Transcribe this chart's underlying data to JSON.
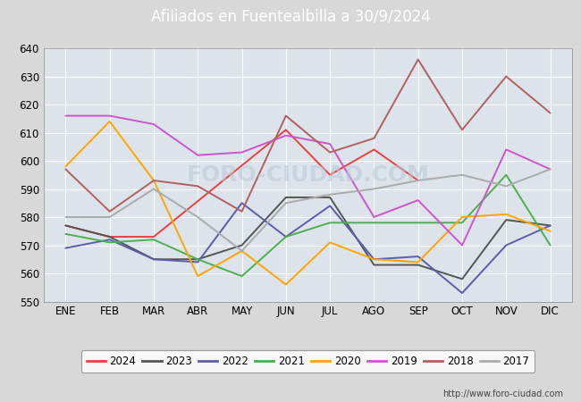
{
  "title": "Afiliados en Fuentealbilla a 30/9/2024",
  "title_bg": "#5b8dd9",
  "xlabel": "",
  "ylabel": "",
  "ylim": [
    550,
    640
  ],
  "yticks": [
    550,
    560,
    570,
    580,
    590,
    600,
    610,
    620,
    630,
    640
  ],
  "months": [
    "ENE",
    "FEB",
    "MAR",
    "ABR",
    "MAY",
    "JUN",
    "JUL",
    "AGO",
    "SEP",
    "OCT",
    "NOV",
    "DIC"
  ],
  "series": {
    "2024": {
      "color": "#e84040",
      "data": [
        577,
        573,
        573,
        null,
        null,
        611,
        595,
        604,
        593,
        null,
        null,
        null
      ]
    },
    "2023": {
      "color": "#555555",
      "data": [
        577,
        573,
        565,
        565,
        570,
        587,
        587,
        563,
        563,
        558,
        579,
        577
      ]
    },
    "2022": {
      "color": "#5b5ea6",
      "data": [
        569,
        572,
        565,
        564,
        585,
        573,
        584,
        565,
        566,
        553,
        570,
        577
      ]
    },
    "2021": {
      "color": "#4caf50",
      "data": [
        574,
        571,
        572,
        565,
        559,
        573,
        578,
        578,
        578,
        578,
        595,
        570
      ]
    },
    "2020": {
      "color": "#ffa500",
      "data": [
        598,
        614,
        593,
        559,
        568,
        556,
        571,
        565,
        564,
        580,
        581,
        575
      ]
    },
    "2019": {
      "color": "#cc55cc",
      "data": [
        616,
        616,
        613,
        602,
        603,
        609,
        606,
        580,
        586,
        570,
        604,
        597
      ]
    },
    "2018": {
      "color": "#b06060",
      "data": [
        597,
        582,
        593,
        591,
        582,
        616,
        603,
        608,
        636,
        611,
        630,
        617
      ]
    },
    "2017": {
      "color": "#aaaaaa",
      "data": [
        580,
        580,
        590,
        580,
        568,
        585,
        588,
        590,
        593,
        595,
        591,
        597
      ]
    }
  },
  "legend_order": [
    "2024",
    "2023",
    "2022",
    "2021",
    "2020",
    "2019",
    "2018",
    "2017"
  ],
  "background_color": "#d8d8d8",
  "plot_bg": "#dce3ea",
  "grid_color": "#ffffff",
  "watermark": "FORO-CIUDAD.COM",
  "url_text": "http://www.foro-ciudad.com"
}
